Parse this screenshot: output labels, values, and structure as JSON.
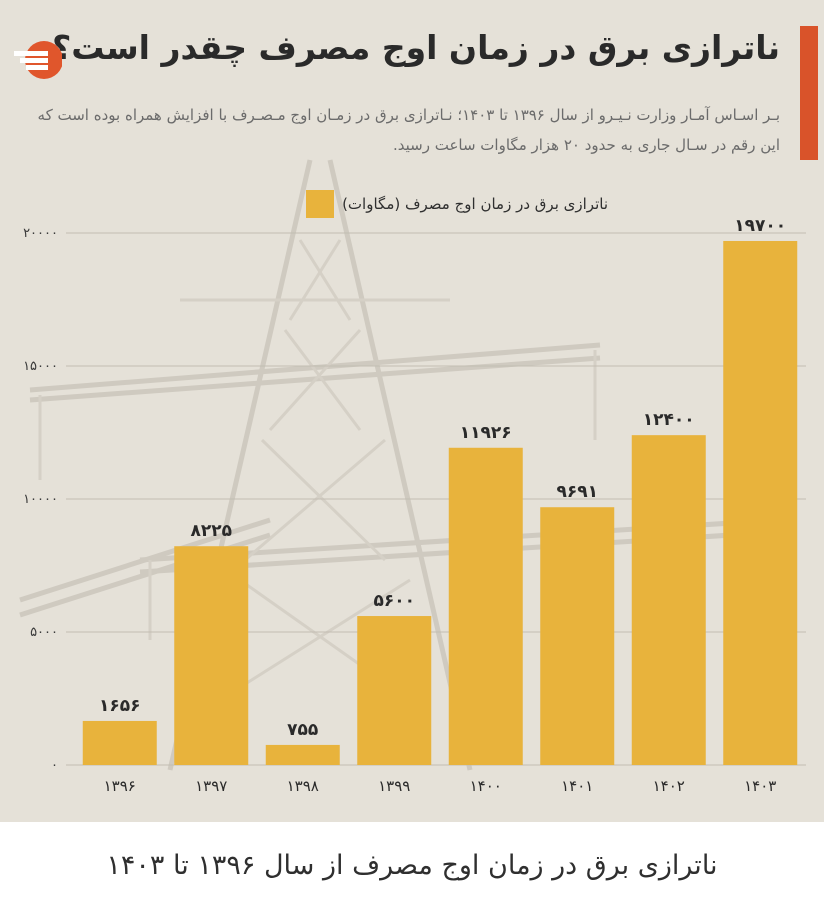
{
  "header": {
    "title": "ناترازی برق در زمان اوج مصرف چقدر است؟",
    "subtitle": "بـر اسـاس آمـار وزارت نـیـرو از سال ۱۳۹۶ تا ۱۴۰۳؛ نـاترازی برق در زمـان اوج مـصـرف با افزایش همراه بوده است که این رقم در سـال جاری به حدود ۲۰ هزار مگاوات ساعت رسید.",
    "accent_color": "#d9532a",
    "logo_icon": "brand-logo-icon"
  },
  "chart_data": {
    "type": "bar",
    "categories": [
      "۱۳۹۶",
      "۱۳۹۷",
      "۱۳۹۸",
      "۱۳۹۹",
      "۱۴۰۰",
      "۱۴۰۱",
      "۱۴۰۲",
      "۱۴۰۳"
    ],
    "values": [
      1656,
      8225,
      755,
      5600,
      11926,
      9691,
      12400,
      19700
    ],
    "value_labels": [
      "۱۶۵۶",
      "۸۲۲۵",
      "۷۵۵",
      "۵۶۰۰",
      "۱۱۹۲۶",
      "۹۶۹۱",
      "۱۲۴۰۰",
      "۱۹۷۰۰"
    ],
    "series_name": "ناترازی برق در زمان اوج مصرف (مگاوات)",
    "ylim": [
      0,
      20000
    ],
    "yticks": [
      0,
      5000,
      10000,
      15000,
      20000
    ],
    "ytick_labels": [
      "۰",
      "۵۰۰۰",
      "۱۰۰۰۰",
      "۱۵۰۰۰",
      "۲۰۰۰۰"
    ],
    "grid": true,
    "legend_position": "top",
    "bar_color": "#e8b33c",
    "title": "",
    "xlabel": "",
    "ylabel": ""
  },
  "caption": "ناترازی برق در زمان اوج مصرف از سال ۱۳۹۶ تا ۱۴۰۳"
}
